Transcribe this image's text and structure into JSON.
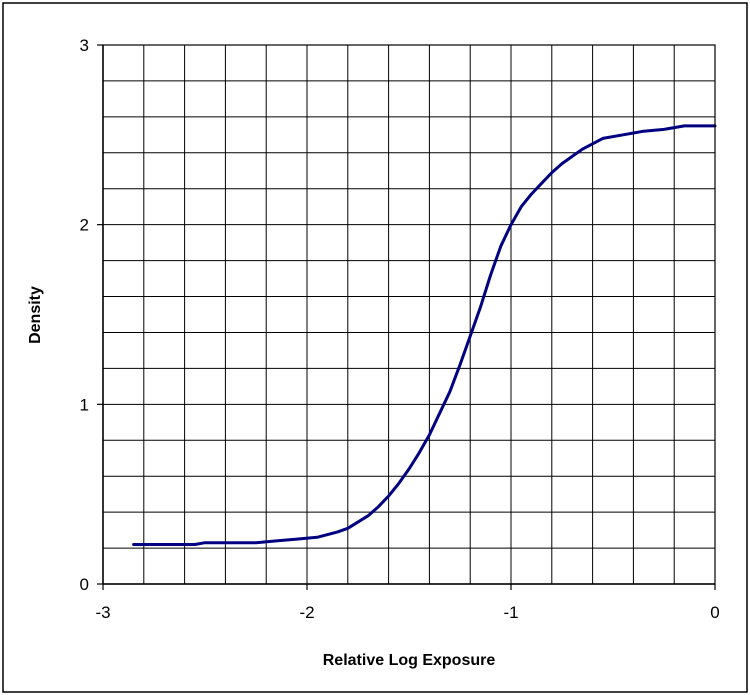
{
  "chart_data": {
    "type": "line",
    "title": "",
    "xlabel": "Relative Log Exposure",
    "ylabel": "Density",
    "xlim": [
      -3,
      0
    ],
    "ylim": [
      0,
      3
    ],
    "x_ticks": [
      "-3",
      "-2",
      "-1",
      "0"
    ],
    "y_ticks": [
      "0",
      "1",
      "2",
      "3"
    ],
    "grid": true,
    "legend": "none",
    "series": [
      {
        "color": "#000080",
        "x": [
          -2.85,
          -2.75,
          -2.65,
          -2.55,
          -2.5,
          -2.45,
          -2.35,
          -2.25,
          -2.15,
          -2.05,
          -1.95,
          -1.85,
          -1.8,
          -1.7,
          -1.65,
          -1.6,
          -1.55,
          -1.5,
          -1.45,
          -1.4,
          -1.35,
          -1.3,
          -1.25,
          -1.2,
          -1.15,
          -1.1,
          -1.05,
          -1.0,
          -0.95,
          -0.9,
          -0.85,
          -0.8,
          -0.75,
          -0.7,
          -0.65,
          -0.6,
          -0.55,
          -0.45,
          -0.35,
          -0.25,
          -0.15,
          -0.05,
          0.0
        ],
        "y": [
          0.22,
          0.22,
          0.22,
          0.22,
          0.23,
          0.23,
          0.23,
          0.23,
          0.24,
          0.25,
          0.26,
          0.29,
          0.31,
          0.38,
          0.43,
          0.49,
          0.56,
          0.64,
          0.73,
          0.83,
          0.95,
          1.07,
          1.22,
          1.38,
          1.54,
          1.72,
          1.88,
          2.0,
          2.1,
          2.17,
          2.23,
          2.29,
          2.34,
          2.38,
          2.42,
          2.45,
          2.48,
          2.5,
          2.52,
          2.53,
          2.55,
          2.55,
          2.55
        ]
      }
    ]
  }
}
